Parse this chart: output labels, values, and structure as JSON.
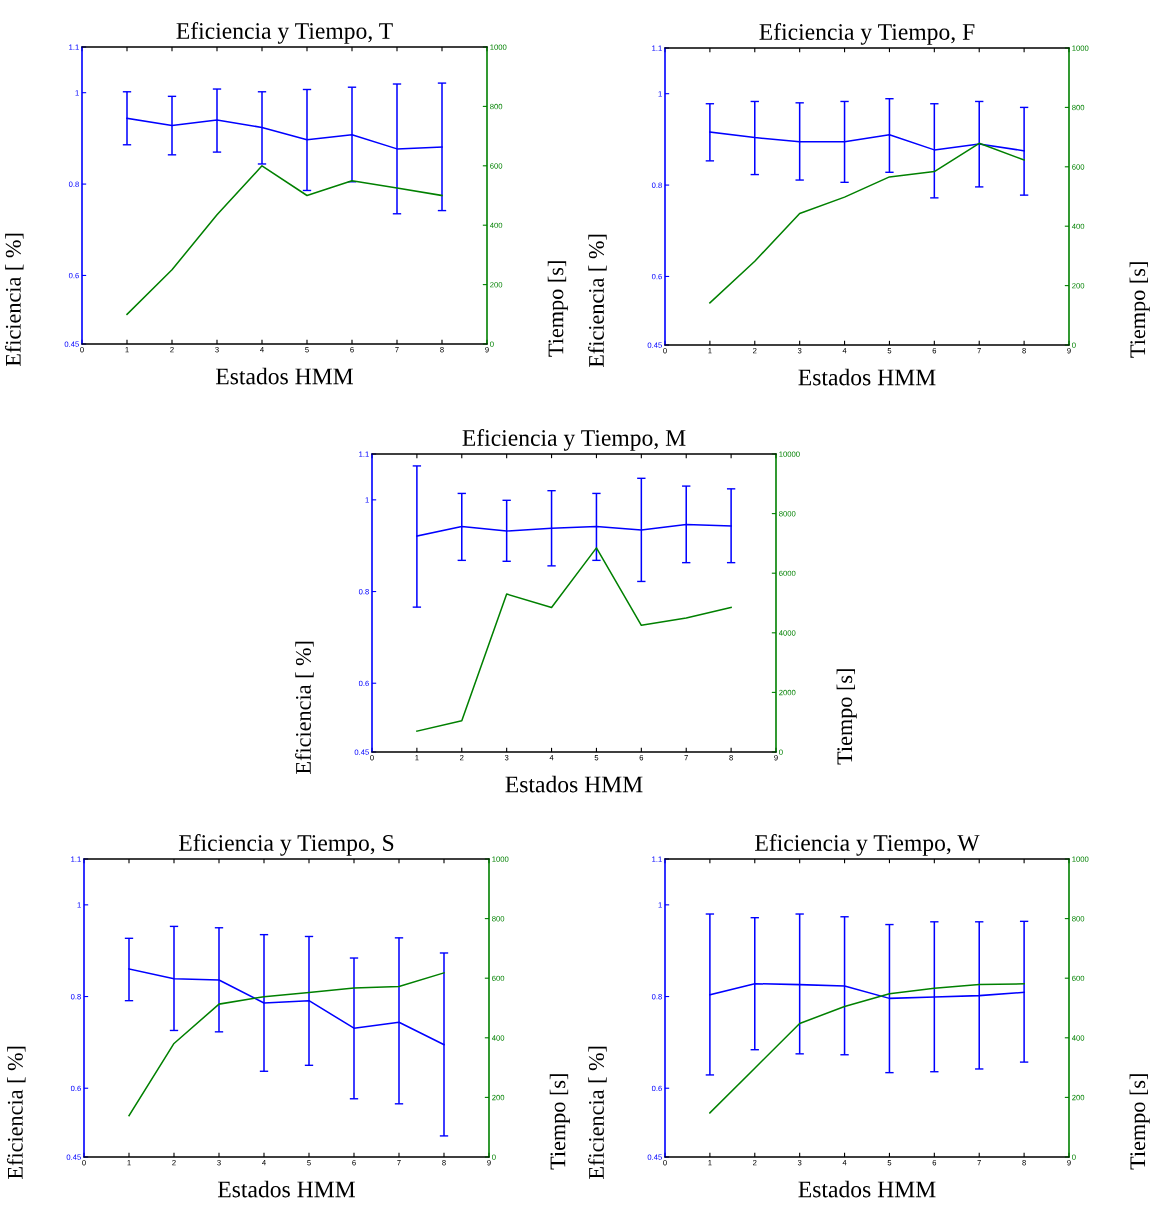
{
  "chart_data": [
    {
      "type": "line",
      "title": "Eficiencia y Tiempo, T",
      "xlabel": "Estados HMM",
      "ylabel": "Eficiencia [ %]",
      "y2label": "Tiempo [s]",
      "x": [
        1,
        2,
        3,
        4,
        5,
        6,
        7,
        8
      ],
      "xlim": [
        0,
        9
      ],
      "xticks": [
        0,
        1,
        2,
        3,
        4,
        5,
        6,
        7,
        8,
        9
      ],
      "ylim": [
        0.45,
        1.1
      ],
      "yticks": [
        0.45,
        0.6,
        0.8,
        1,
        1.1
      ],
      "y2lim": [
        0,
        1000
      ],
      "y2ticks": [
        0,
        200,
        400,
        600,
        800,
        1000
      ],
      "grid": false,
      "marker": "none",
      "line_style": "solid",
      "series": [
        {
          "color": "#0000ff",
          "values": [
            0.944,
            0.928,
            0.94,
            0.924,
            0.897,
            0.908,
            0.877,
            0.881
          ],
          "errors": [
            [
              0.886,
              1.002
            ],
            [
              0.864,
              0.992
            ],
            [
              0.87,
              1.008
            ],
            [
              0.844,
              1.002
            ],
            [
              0.786,
              1.007
            ],
            [
              0.805,
              1.012
            ],
            [
              0.735,
              1.019
            ],
            [
              0.742,
              1.021
            ]
          ]
        },
        {
          "color": "#008000",
          "axis": "y2",
          "values": [
            100,
            250,
            435,
            600,
            500,
            550,
            525,
            500
          ]
        }
      ]
    },
    {
      "type": "line",
      "title": "Eficiencia y Tiempo, F",
      "xlabel": "Estados HMM",
      "ylabel": "Eficiencia [ %]",
      "y2label": "Tiempo [s]",
      "x": [
        1,
        2,
        3,
        4,
        5,
        6,
        7,
        8
      ],
      "xlim": [
        0,
        9
      ],
      "xticks": [
        0,
        1,
        2,
        3,
        4,
        5,
        6,
        7,
        8,
        9
      ],
      "ylim": [
        0.45,
        1.1
      ],
      "yticks": [
        0.45,
        0.6,
        0.8,
        1,
        1.1
      ],
      "y2lim": [
        0,
        1000
      ],
      "y2ticks": [
        0,
        200,
        400,
        600,
        800,
        1000
      ],
      "grid": false,
      "marker": "none",
      "line_style": "solid",
      "series": [
        {
          "color": "#0000ff",
          "values": [
            0.916,
            0.904,
            0.895,
            0.895,
            0.91,
            0.877,
            0.89,
            0.875
          ],
          "errors": [
            [
              0.853,
              0.978
            ],
            [
              0.823,
              0.983
            ],
            [
              0.811,
              0.98
            ],
            [
              0.806,
              0.983
            ],
            [
              0.828,
              0.989
            ],
            [
              0.772,
              0.978
            ],
            [
              0.796,
              0.983
            ],
            [
              0.778,
              0.97
            ]
          ]
        },
        {
          "color": "#008000",
          "axis": "y2",
          "values": [
            142,
            282,
            443,
            498,
            566,
            584,
            679,
            623
          ]
        }
      ]
    },
    {
      "type": "line",
      "title": "Eficiencia y Tiempo, M",
      "xlabel": "Estados HMM",
      "ylabel": "Eficiencia [ %]",
      "y2label": "Tiempo [s]",
      "x": [
        1,
        2,
        3,
        4,
        5,
        6,
        7,
        8
      ],
      "xlim": [
        0,
        9
      ],
      "xticks": [
        0,
        1,
        2,
        3,
        4,
        5,
        6,
        7,
        8,
        9
      ],
      "ylim": [
        0.45,
        1.1
      ],
      "yticks": [
        0.45,
        0.6,
        0.8,
        1,
        1.1
      ],
      "y2lim": [
        0,
        10000
      ],
      "y2ticks": [
        0,
        2000,
        4000,
        6000,
        8000,
        10000
      ],
      "grid": false,
      "marker": "none",
      "line_style": "solid",
      "series": [
        {
          "color": "#0000ff",
          "values": [
            0.921,
            0.942,
            0.932,
            0.938,
            0.942,
            0.934,
            0.946,
            0.943
          ],
          "errors": [
            [
              0.766,
              1.074
            ],
            [
              0.868,
              1.014
            ],
            [
              0.866,
              0.999
            ],
            [
              0.856,
              1.02
            ],
            [
              0.868,
              1.014
            ],
            [
              0.822,
              1.047
            ],
            [
              0.863,
              1.03
            ],
            [
              0.863,
              1.024
            ]
          ]
        },
        {
          "color": "#008000",
          "axis": "y2",
          "values": [
            700,
            1050,
            5300,
            4850,
            6850,
            4250,
            4500,
            4850
          ]
        }
      ]
    },
    {
      "type": "line",
      "title": "Eficiencia y Tiempo, S",
      "xlabel": "Estados HMM",
      "ylabel": "Eficiencia [ %]",
      "y2label": "Tiempo [s]",
      "x": [
        1,
        2,
        3,
        4,
        5,
        6,
        7,
        8
      ],
      "xlim": [
        0,
        9
      ],
      "xticks": [
        0,
        1,
        2,
        3,
        4,
        5,
        6,
        7,
        8,
        9
      ],
      "ylim": [
        0.45,
        1.1
      ],
      "yticks": [
        0.45,
        0.6,
        0.8,
        1,
        1.1
      ],
      "y2lim": [
        0,
        1000
      ],
      "y2ticks": [
        0,
        200,
        400,
        600,
        800,
        1000
      ],
      "grid": false,
      "marker": "none",
      "line_style": "solid",
      "series": [
        {
          "color": "#0000ff",
          "values": [
            0.86,
            0.839,
            0.836,
            0.786,
            0.791,
            0.731,
            0.744,
            0.695
          ],
          "errors": [
            [
              0.791,
              0.927
            ],
            [
              0.726,
              0.953
            ],
            [
              0.723,
              0.95
            ],
            [
              0.637,
              0.935
            ],
            [
              0.65,
              0.931
            ],
            [
              0.577,
              0.884
            ],
            [
              0.566,
              0.928
            ],
            [
              0.496,
              0.895
            ]
          ]
        },
        {
          "color": "#008000",
          "axis": "y2",
          "values": [
            139,
            381,
            513,
            538,
            552,
            567,
            572,
            618
          ]
        }
      ]
    },
    {
      "type": "line",
      "title": "Eficiencia y Tiempo, W",
      "xlabel": "Estados HMM",
      "ylabel": "Eficiencia [ %]",
      "y2label": "Tiempo [s]",
      "x": [
        1,
        2,
        3,
        4,
        5,
        6,
        7,
        8
      ],
      "xlim": [
        0,
        9
      ],
      "xticks": [
        0,
        1,
        2,
        3,
        4,
        5,
        6,
        7,
        8,
        9
      ],
      "ylim": [
        0.45,
        1.1
      ],
      "yticks": [
        0.45,
        0.6,
        0.8,
        1,
        1.1
      ],
      "y2lim": [
        0,
        1000
      ],
      "y2ticks": [
        0,
        200,
        400,
        600,
        800,
        1000
      ],
      "grid": false,
      "marker": "none",
      "line_style": "solid",
      "series": [
        {
          "color": "#0000ff",
          "values": [
            0.804,
            0.828,
            0.826,
            0.823,
            0.796,
            0.799,
            0.802,
            0.809
          ],
          "errors": [
            [
              0.629,
              0.98
            ],
            [
              0.684,
              0.972
            ],
            [
              0.675,
              0.98
            ],
            [
              0.673,
              0.974
            ],
            [
              0.634,
              0.957
            ],
            [
              0.636,
              0.963
            ],
            [
              0.642,
              0.963
            ],
            [
              0.657,
              0.964
            ]
          ]
        },
        {
          "color": "#008000",
          "axis": "y2",
          "values": [
            148,
            298,
            448,
            505,
            548,
            566,
            579,
            581
          ]
        }
      ]
    }
  ]
}
